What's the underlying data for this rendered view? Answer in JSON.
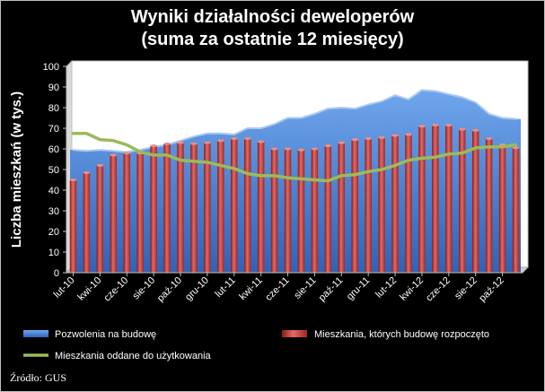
{
  "chart_data": {
    "type": "bar",
    "title": [
      "Wyniki działalności deweloperów",
      "(suma za ostatnie 12 miesięcy)"
    ],
    "ylabel": "Liczba mieszkań (w tys.)",
    "xlabel": "",
    "ylim": [
      0,
      100
    ],
    "yticks": [
      0,
      10,
      20,
      30,
      40,
      50,
      60,
      70,
      80,
      90,
      100
    ],
    "grid": false,
    "legend_position": "bottom",
    "categories": [
      "lut-10",
      "mar-10",
      "kwi-10",
      "maj-10",
      "cze-10",
      "lip-10",
      "sie-10",
      "wrz-10",
      "paź-10",
      "lis-10",
      "gru-10",
      "sty-11",
      "lut-11",
      "mar-11",
      "kwi-11",
      "maj-11",
      "cze-11",
      "lip-11",
      "sie-11",
      "wrz-11",
      "paź-11",
      "lis-11",
      "gru-11",
      "sty-12",
      "lut-12",
      "mar-12",
      "kwi-12",
      "maj-12",
      "cze-12",
      "lip-12",
      "sie-12",
      "wrz-12",
      "paź-12",
      "lis-12"
    ],
    "tick_labels": [
      "lut-10",
      "kwi-10",
      "cze-10",
      "sie-10",
      "paź-10",
      "gru-10",
      "lut-11",
      "kwi-11",
      "cze-11",
      "sie-11",
      "paź-11",
      "gru-11",
      "lut-12",
      "kwi-12",
      "cze-12",
      "sie-12",
      "paź-12"
    ],
    "series": [
      {
        "name": "Pozwolenia na budowę",
        "kind": "area",
        "color": "#4f86d8",
        "values": [
          59.5,
          59,
          59.5,
          59,
          58.5,
          59.5,
          61,
          62,
          64,
          66,
          67.5,
          67.5,
          67,
          70,
          70,
          72,
          75,
          75,
          77,
          79.5,
          80,
          79.5,
          81.5,
          83,
          86,
          84,
          88.5,
          88,
          86.5,
          85,
          82.5,
          77,
          75,
          74.5
        ]
      },
      {
        "name": "Mieszkania, których budowę rozpoczęto",
        "kind": "bar",
        "color": "#c0504d",
        "values": [
          45,
          48.5,
          52,
          57,
          58,
          58,
          61.5,
          62.5,
          63,
          62.5,
          63,
          64,
          65,
          65,
          63.5,
          60,
          60,
          59.5,
          60,
          61.5,
          63,
          64.5,
          65,
          65.5,
          66.5,
          67,
          71,
          71.5,
          71.5,
          69.5,
          69,
          65,
          62,
          60.5
        ]
      },
      {
        "name": "Mieszkania oddane do użytkowania",
        "kind": "line",
        "color": "#9bbb59",
        "values": [
          67.5,
          67.5,
          64.5,
          64,
          62,
          58.5,
          57,
          57,
          54.5,
          54,
          53.5,
          52,
          50.5,
          48,
          47,
          47,
          46,
          45.5,
          45,
          44.5,
          47,
          47.5,
          49,
          50,
          52,
          54.5,
          55.5,
          56,
          57.5,
          58,
          60.5,
          61,
          61,
          62
        ]
      }
    ]
  },
  "source": "Źródło: GUS"
}
